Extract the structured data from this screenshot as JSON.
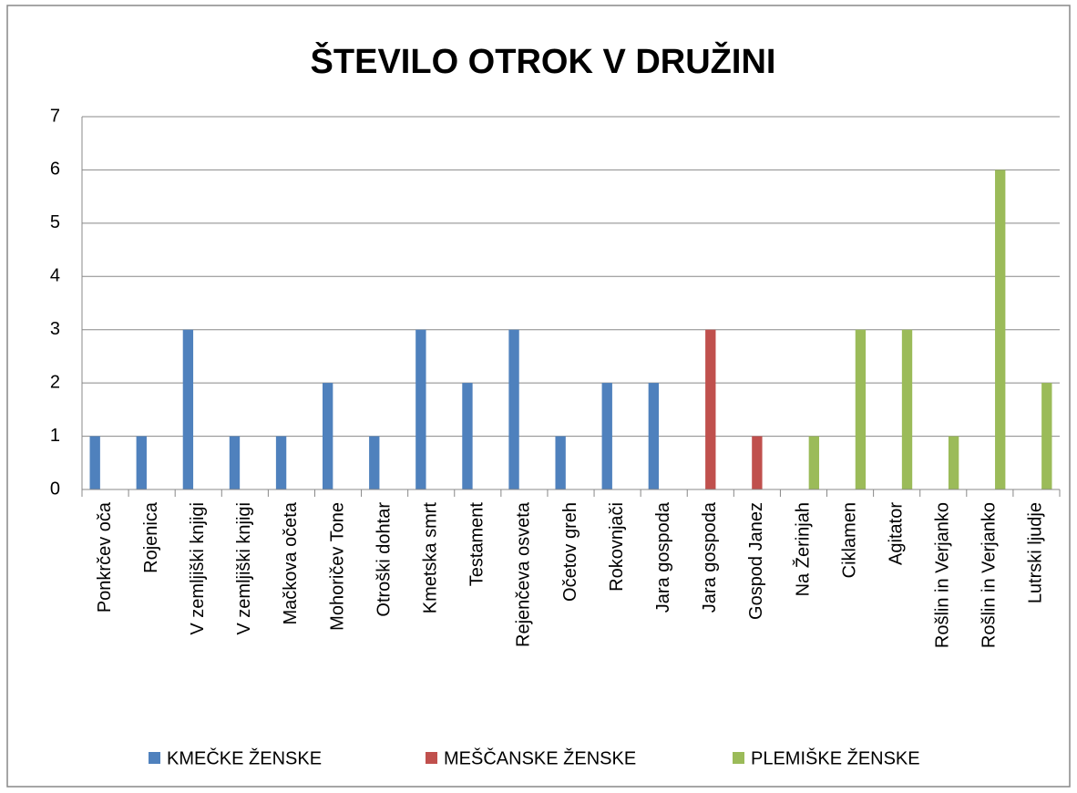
{
  "chart_data": {
    "type": "bar",
    "title": "ŠTEVILO OTROK V DRUŽINI",
    "categories": [
      "Ponkrčev oča",
      "Rojenica",
      "V zemljiški knjigi",
      "V zemljiški knjigi",
      "Mačkova očeta",
      "Mohoričev Tone",
      "Otroški dohtar",
      "Kmetska smrt",
      "Testament",
      "Rejenčeva osveta",
      "Očetov greh",
      "Rokovnjači",
      "Jara gospoda",
      "Jara gospoda",
      "Gospod Janez",
      "Na Žerinjah",
      "Ciklamen",
      "Agitator",
      "Rošlin in Verjanko",
      "Rošlin in Verjanko",
      "Lutrski ljudje"
    ],
    "series": [
      {
        "name": "KMEČKE ŽENSKE",
        "color": "#4f81bd",
        "values": [
          1,
          1,
          3,
          1,
          1,
          2,
          1,
          3,
          2,
          3,
          1,
          2,
          2,
          null,
          null,
          null,
          null,
          null,
          null,
          null,
          null
        ]
      },
      {
        "name": "MEŠČANSKE ŽENSKE",
        "color": "#c0504d",
        "values": [
          null,
          null,
          null,
          null,
          null,
          null,
          null,
          null,
          null,
          null,
          null,
          null,
          null,
          3,
          1,
          null,
          null,
          null,
          null,
          null,
          null
        ]
      },
      {
        "name": "PLEMIŠKE ŽENSKE",
        "color": "#9bbb59",
        "values": [
          null,
          null,
          null,
          null,
          null,
          null,
          null,
          null,
          null,
          null,
          null,
          null,
          null,
          null,
          null,
          1,
          3,
          3,
          1,
          6,
          2
        ]
      }
    ],
    "ylim": [
      0,
      7
    ],
    "yticks": [
      0,
      1,
      2,
      3,
      4,
      5,
      6,
      7
    ],
    "grid": true,
    "legend": "bottom"
  }
}
